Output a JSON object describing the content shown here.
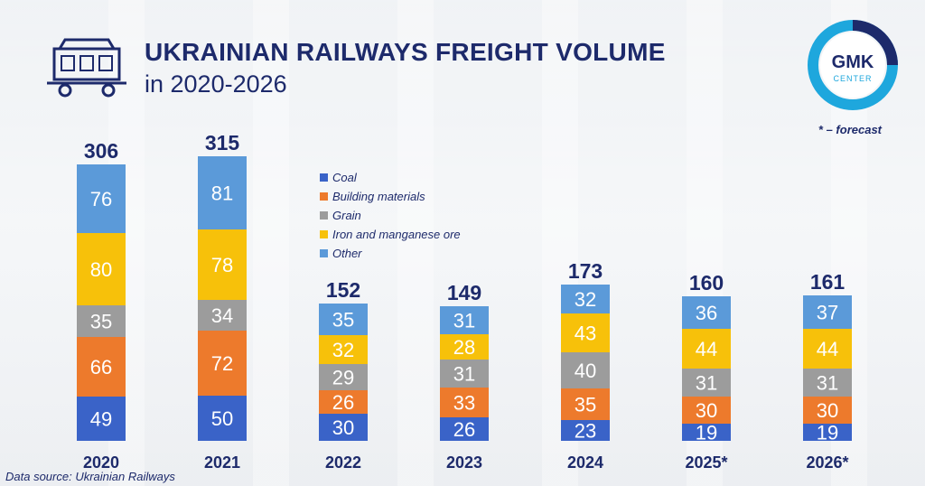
{
  "header": {
    "title": "UKRAINIAN RAILWAYS FREIGHT VOLUME",
    "subtitle": "in 2020-2026"
  },
  "logo": {
    "line1": "GMK",
    "line2": "CENTER",
    "ring_color": "#1ea7dd"
  },
  "footnote": "* – forecast",
  "source": "Data source: Ukrainian Railways",
  "colors": {
    "coal": "#3a63c8",
    "building": "#ed7a2c",
    "grain": "#9c9c9c",
    "ore": "#f7c10a",
    "other": "#5b9ad9",
    "text": "#1d2a6b"
  },
  "chart_data": {
    "type": "bar",
    "stacked": true,
    "categories": [
      "2020",
      "2021",
      "2022",
      "2023",
      "2024",
      "2025*",
      "2026*"
    ],
    "series": [
      {
        "name": "Coal",
        "values": [
          49,
          50,
          30,
          26,
          23,
          19,
          19
        ]
      },
      {
        "name": "Building materials",
        "values": [
          66,
          72,
          26,
          33,
          35,
          30,
          30
        ]
      },
      {
        "name": "Grain",
        "values": [
          35,
          34,
          29,
          31,
          40,
          31,
          31
        ]
      },
      {
        "name": "Iron and manganese ore",
        "values": [
          80,
          78,
          32,
          28,
          43,
          44,
          44
        ]
      },
      {
        "name": "Other",
        "values": [
          76,
          81,
          35,
          31,
          32,
          36,
          37
        ]
      }
    ],
    "totals": [
      306,
      315,
      152,
      149,
      173,
      160,
      161
    ],
    "legend_position": "top-center",
    "grid": false
  }
}
